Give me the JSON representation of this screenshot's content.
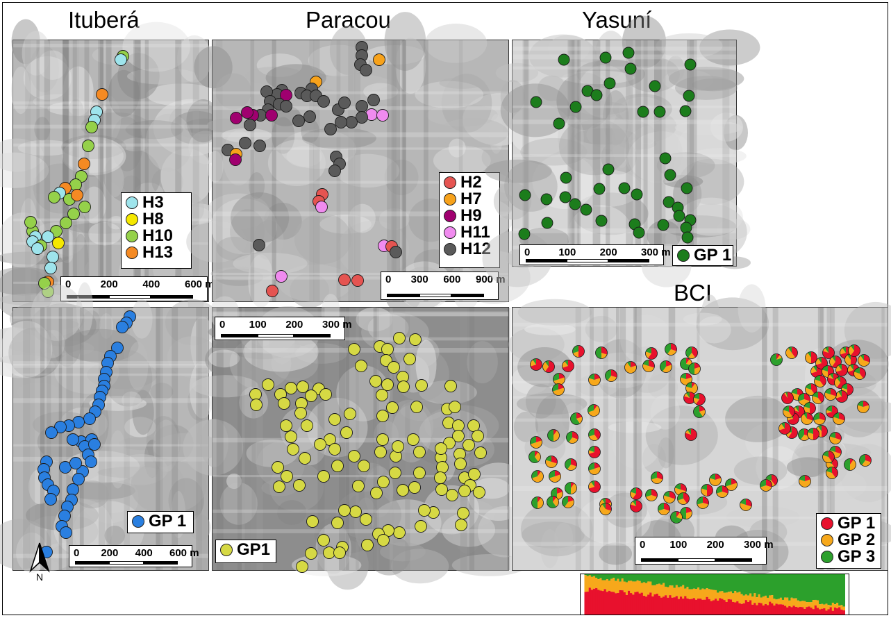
{
  "titles": {
    "ituber": "Ituberá",
    "paracou": "Paracou",
    "yasuni": "Yasuní",
    "bci": "BCI"
  },
  "colors": {
    "H2": "#e55451",
    "H3": "#9ee4ec",
    "H7": "#f7a21b",
    "H8": "#f5e800",
    "H9": "#a0006f",
    "H10": "#95d14a",
    "H11": "#f08bef",
    "H12": "#5a5a5a",
    "H13": "#f58a23",
    "itubera_gp1": "#2a7fe0",
    "yasuni_gp1": "#1c7d1c",
    "paracou_gp1": "#d6d944",
    "bci_gp1": "#e8112d",
    "bci_gp2": "#f7a81b",
    "bci_gp3": "#2ca02c"
  },
  "itubera_haplo": {
    "legend": [
      {
        "label": "H3",
        "color_key": "H3"
      },
      {
        "label": "H8",
        "color_key": "H8"
      },
      {
        "label": "H10",
        "color_key": "H10"
      },
      {
        "label": "H13",
        "color_key": "H13"
      }
    ],
    "scale": {
      "ticks": [
        "0",
        "200",
        "400",
        "600 m"
      ]
    }
  },
  "paracou_haplo": {
    "legend": [
      {
        "label": "H2",
        "color_key": "H2"
      },
      {
        "label": "H7",
        "color_key": "H7"
      },
      {
        "label": "H9",
        "color_key": "H9"
      },
      {
        "label": "H11",
        "color_key": "H11"
      },
      {
        "label": "H12",
        "color_key": "H12"
      }
    ],
    "scale": {
      "ticks": [
        "0",
        "300",
        "600",
        "900 m"
      ]
    }
  },
  "yasuni_gp": {
    "legend": [
      {
        "label": "GP 1",
        "color_key": "yasuni_gp1"
      }
    ],
    "scale": {
      "ticks": [
        "0",
        "100",
        "200",
        "300 m"
      ]
    }
  },
  "itubera_gp": {
    "legend": [
      {
        "label": "GP 1",
        "color_key": "itubera_gp1"
      }
    ],
    "scale": {
      "ticks": [
        "0",
        "200",
        "400",
        "600 m"
      ]
    }
  },
  "paracou_gp": {
    "legend": [
      {
        "label": "GP1",
        "color_key": "paracou_gp1"
      }
    ],
    "scale": {
      "ticks": [
        "0",
        "100",
        "200",
        "300 m"
      ]
    }
  },
  "bci_gp": {
    "legend": [
      {
        "label": "GP 1",
        "color_key": "bci_gp1"
      },
      {
        "label": "GP 2",
        "color_key": "bci_gp2"
      },
      {
        "label": "GP 3",
        "color_key": "bci_gp3"
      }
    ],
    "scale": {
      "ticks": [
        "0",
        "100",
        "200",
        "300 m"
      ]
    }
  },
  "north_arrow": {
    "label": "N"
  }
}
